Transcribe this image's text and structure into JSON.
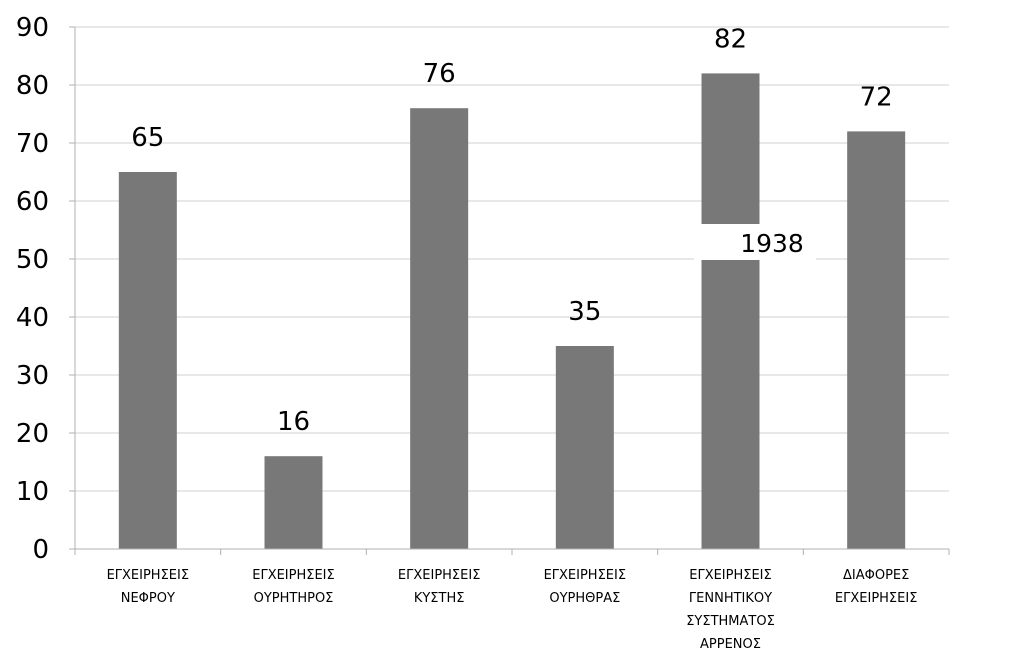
{
  "chart_data": {
    "type": "bar",
    "categories": [
      [
        "ΕΓΧΕΙΡΗΣΕΙΣ",
        "ΝΕΦΡΟΥ"
      ],
      [
        "ΕΓΧΕΙΡΗΣΕΙΣ",
        "ΟΥΡΗΤΗΡΟΣ"
      ],
      [
        "ΕΓΧΕΙΡΗΣΕΙΣ",
        "ΚΥΣΤΗΣ"
      ],
      [
        "ΕΓΧΕΙΡΗΣΕΙΣ",
        "ΟΥΡΗΘΡΑΣ"
      ],
      [
        "ΕΓΧΕΙΡΗΣΕΙΣ",
        "ΓΕΝΝΗΤΙΚΟΥ",
        "ΣΥΣΤΗΜΑΤΟΣ",
        "ΑΡΡΕΝΟΣ"
      ],
      [
        "ΔΙΑΦΟΡΕΣ",
        "ΕΓΧΕΙΡΗΣΕΙΣ"
      ]
    ],
    "values": [
      65,
      16,
      76,
      35,
      82,
      72
    ],
    "data_labels": [
      "65",
      "16",
      "76",
      "35",
      "82",
      "72"
    ],
    "annotation": "1938",
    "ylim": [
      0,
      90
    ],
    "yticks": [
      0,
      10,
      20,
      30,
      40,
      50,
      60,
      70,
      80,
      90
    ],
    "grid": true,
    "bar_color": "#787878",
    "grid_color": "#d0d0d0",
    "axis_color": "#b0b0b0"
  }
}
